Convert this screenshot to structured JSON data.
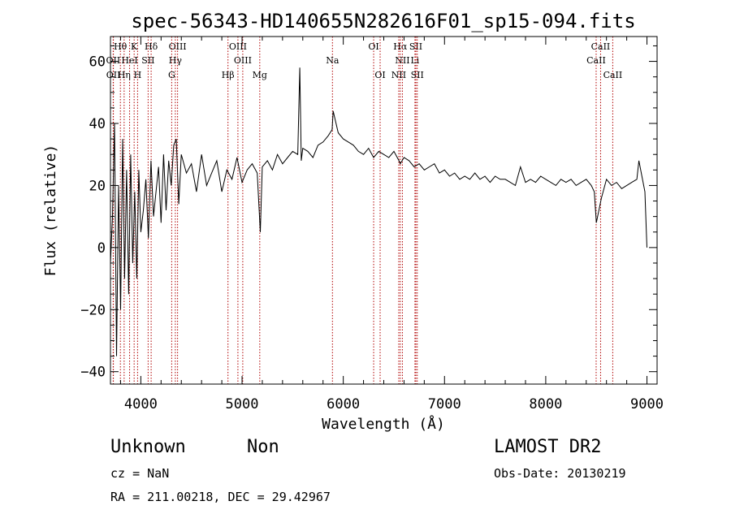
{
  "chart_data": {
    "type": "line",
    "title": "spec-56343-HD140655N282616F01_sp15-094.fits",
    "xlabel": "Wavelength (Å)",
    "ylabel": "Flux (relative)",
    "xlim": [
      3700,
      9100
    ],
    "ylim": [
      -44,
      68
    ],
    "xticks": [
      4000,
      5000,
      6000,
      7000,
      8000,
      9000
    ],
    "yticks": [
      -40,
      -20,
      0,
      20,
      40,
      60
    ],
    "xtick_labels": [
      "4000",
      "5000",
      "6000",
      "7000",
      "8000",
      "9000"
    ],
    "ytick_labels": [
      "−40",
      "−20",
      "0",
      "20",
      "40",
      "60"
    ],
    "grid": false,
    "series": [
      {
        "x": [
          3700,
          3720,
          3740,
          3760,
          3780,
          3800,
          3820,
          3840,
          3860,
          3880,
          3900,
          3920,
          3940,
          3960,
          3980,
          4000,
          4025,
          4050,
          4075,
          4100,
          4125,
          4150,
          4175,
          4200,
          4225,
          4250,
          4275,
          4300,
          4325,
          4350,
          4375,
          4400,
          4450,
          4500,
          4550,
          4600,
          4650,
          4700,
          4750,
          4800,
          4850,
          4900,
          4950,
          5000,
          5050,
          5100,
          5150,
          5180,
          5200,
          5250,
          5300,
          5350,
          5400,
          5450,
          5500,
          5550,
          5570,
          5577,
          5585,
          5600,
          5650,
          5700,
          5750,
          5800,
          5850,
          5890,
          5900,
          5950,
          6000,
          6050,
          6100,
          6150,
          6200,
          6250,
          6300,
          6350,
          6400,
          6450,
          6500,
          6550,
          6563,
          6600,
          6650,
          6700,
          6750,
          6800,
          6850,
          6900,
          6950,
          7000,
          7050,
          7100,
          7150,
          7200,
          7250,
          7300,
          7350,
          7400,
          7450,
          7500,
          7550,
          7600,
          7650,
          7700,
          7750,
          7800,
          7850,
          7900,
          7950,
          8000,
          8050,
          8100,
          8150,
          8200,
          8250,
          8300,
          8350,
          8400,
          8450,
          8480,
          8500,
          8550,
          8600,
          8650,
          8700,
          8750,
          8800,
          8850,
          8900,
          8920,
          8950,
          8980,
          9000
        ],
        "values": [
          -5,
          10,
          40,
          -35,
          20,
          -20,
          35,
          -10,
          25,
          -15,
          30,
          -5,
          18,
          -10,
          25,
          5,
          12,
          22,
          3,
          28,
          10,
          18,
          26,
          8,
          30,
          12,
          28,
          20,
          33,
          35,
          14,
          30,
          24,
          27,
          18,
          30,
          20,
          24,
          28,
          18,
          25,
          22,
          29,
          21,
          25,
          27,
          24,
          5,
          26,
          28,
          25,
          30,
          27,
          29,
          31,
          30,
          58,
          45,
          28,
          32,
          31,
          29,
          33,
          34,
          36,
          38,
          44,
          37,
          35,
          34,
          33,
          31,
          30,
          32,
          29,
          31,
          30,
          29,
          31,
          28,
          27,
          29,
          28,
          26,
          27,
          25,
          26,
          27,
          24,
          25,
          23,
          24,
          22,
          23,
          22,
          24,
          22,
          23,
          21,
          23,
          22,
          22,
          21,
          20,
          26,
          21,
          22,
          21,
          23,
          22,
          21,
          20,
          22,
          21,
          22,
          20,
          21,
          22,
          20,
          18,
          8,
          16,
          22,
          20,
          21,
          19,
          20,
          21,
          22,
          28,
          23,
          18,
          0
        ]
      }
    ],
    "lines_top": [
      {
        "label": "Hθ",
        "x": 3798
      },
      {
        "label": "K",
        "x": 3934
      },
      {
        "label": "Hδ",
        "x": 4102
      },
      {
        "label": "OIII",
        "x": 4363
      },
      {
        "label": "OIII",
        "x": 4959
      },
      {
        "label": "OI",
        "x": 6300
      },
      {
        "label": "Hα",
        "x": 6563
      },
      {
        "label": "SII",
        "x": 6717
      },
      {
        "label": "CaII",
        "x": 8542
      }
    ],
    "lines_mid": [
      {
        "label": "OII",
        "x": 3727
      },
      {
        "label": "HeI",
        "x": 3889
      },
      {
        "label": "SII",
        "x": 4072
      },
      {
        "label": "Hγ",
        "x": 4341
      },
      {
        "label": "OIII",
        "x": 5007
      },
      {
        "label": "Na",
        "x": 5893
      },
      {
        "label": "NII",
        "x": 6584
      },
      {
        "label": "Li",
        "x": 6708
      },
      {
        "label": "CaII",
        "x": 8498
      }
    ],
    "lines_bot": [
      {
        "label": "OII",
        "x": 3729
      },
      {
        "label": "Hη",
        "x": 3835
      },
      {
        "label": "H",
        "x": 3968
      },
      {
        "label": "G",
        "x": 4305
      },
      {
        "label": "Hβ",
        "x": 4861
      },
      {
        "label": "Mg",
        "x": 5175
      },
      {
        "label": "OI",
        "x": 6364
      },
      {
        "label": "NII",
        "x": 6548
      },
      {
        "label": "SII",
        "x": 6731
      },
      {
        "label": "CaII",
        "x": 8662
      }
    ],
    "line_color": "#b00000"
  },
  "info": {
    "object_class": "Unknown",
    "subclass": "Non",
    "survey": "LAMOST DR2",
    "cz": "cz = NaN",
    "obs_date": "Obs-Date: 20130219",
    "coords": "RA = 211.00218, DEC =  29.42967"
  }
}
